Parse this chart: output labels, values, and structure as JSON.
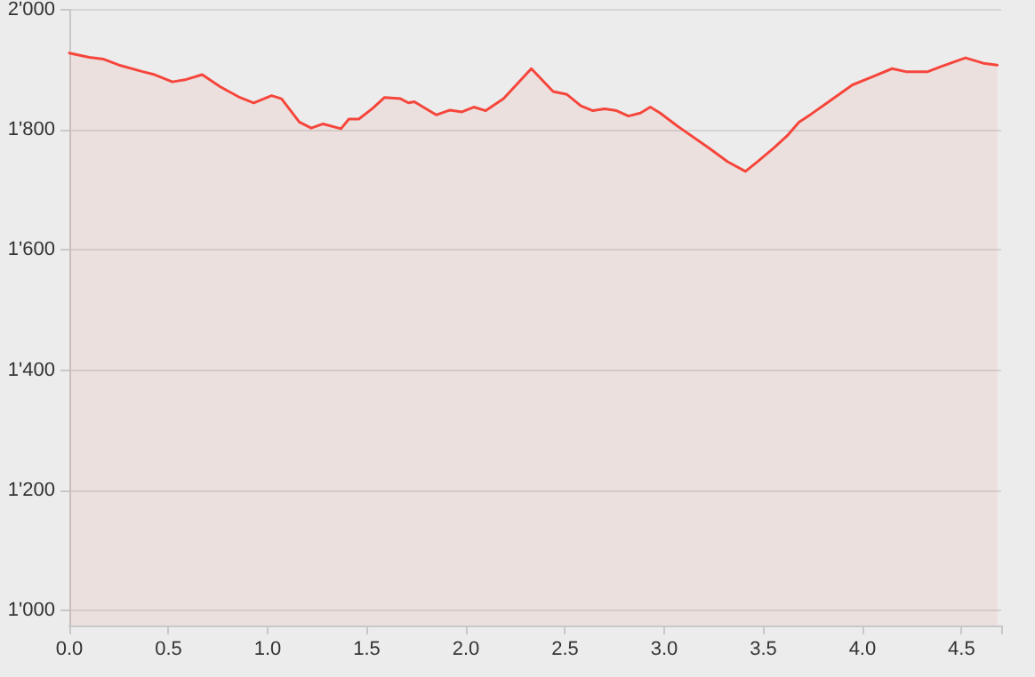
{
  "chart_data": {
    "type": "area",
    "x": [
      0,
      0.1,
      0.17,
      0.25,
      0.37,
      0.43,
      0.52,
      0.59,
      0.67,
      0.76,
      0.86,
      0.93,
      1.02,
      1.07,
      1.16,
      1.22,
      1.28,
      1.37,
      1.41,
      1.46,
      1.53,
      1.59,
      1.67,
      1.71,
      1.74,
      1.85,
      1.92,
      1.98,
      2.04,
      2.1,
      2.19,
      2.33,
      2.44,
      2.51,
      2.58,
      2.64,
      2.7,
      2.76,
      2.82,
      2.88,
      2.93,
      2.98,
      3.06,
      3.23,
      3.32,
      3.41,
      3.47,
      3.55,
      3.62,
      3.68,
      3.74,
      3.83,
      3.95,
      4.04,
      4.15,
      4.22,
      4.33,
      4.4,
      4.52,
      4.61,
      4.68
    ],
    "series": [
      {
        "color": "#f5463c",
        "values": [
          1928,
          1921,
          1918,
          1908,
          1897,
          1892,
          1880,
          1884,
          1892,
          1872,
          1854,
          1845,
          1857,
          1852,
          1813,
          1803,
          1810,
          1802,
          1818,
          1818,
          1836,
          1854,
          1852,
          1845,
          1847,
          1825,
          1833,
          1830,
          1838,
          1832,
          1852,
          1902,
          1864,
          1859,
          1840,
          1832,
          1835,
          1832,
          1823,
          1828,
          1838,
          1828,
          1808,
          1769,
          1747,
          1731,
          1747,
          1769,
          1790,
          1813,
          1826,
          1847,
          1875,
          1887,
          1902,
          1897,
          1897,
          1906,
          1920,
          1911,
          1908
        ]
      }
    ],
    "xlim": [
      0,
      4.7
    ],
    "ylim": [
      975,
      2000
    ],
    "xticks": [
      {
        "value": 0,
        "label": "0.0"
      },
      {
        "value": 0.5,
        "label": "0.5"
      },
      {
        "value": 1,
        "label": "1.0"
      },
      {
        "value": 1.5,
        "label": "1.5"
      },
      {
        "value": 2,
        "label": "2.0"
      },
      {
        "value": 2.5,
        "label": "2.5"
      },
      {
        "value": 3,
        "label": "3.0"
      },
      {
        "value": 3.5,
        "label": "3.5"
      },
      {
        "value": 4,
        "label": "4.0"
      },
      {
        "value": 4.5,
        "label": "4.5"
      },
      {
        "value": 4.7,
        "label": null
      }
    ],
    "yticks": [
      {
        "value": 1000,
        "label": "1'000"
      },
      {
        "value": 1200,
        "label": "1'200"
      },
      {
        "value": 1400,
        "label": "1'400"
      },
      {
        "value": 1600,
        "label": "1'600"
      },
      {
        "value": 1800,
        "label": "1'800"
      },
      {
        "value": 2000,
        "label": "2'000"
      }
    ],
    "grid": "y",
    "marker": "none",
    "line_style": "solid"
  }
}
